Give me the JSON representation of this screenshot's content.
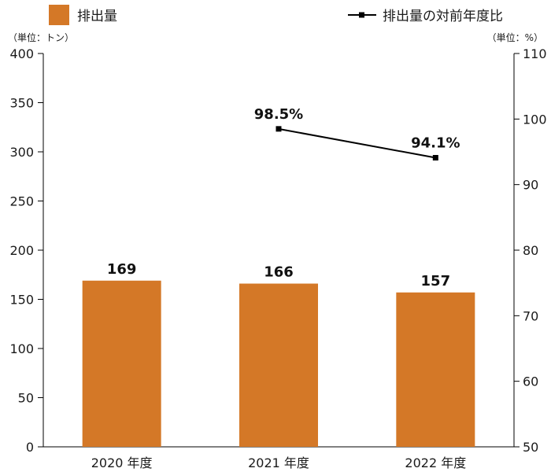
{
  "chart_data": {
    "type": "bar",
    "categories": [
      "2020 年度",
      "2021 年度",
      "2022 年度"
    ],
    "series": [
      {
        "name": "排出量",
        "kind": "bar",
        "axis": "left",
        "values": [
          169,
          166,
          157
        ],
        "labels": [
          "169",
          "166",
          "157"
        ],
        "color": "#D47827"
      },
      {
        "name": "排出量の対前年度比",
        "kind": "line",
        "axis": "right",
        "values": [
          null,
          98.5,
          94.1
        ],
        "labels": [
          "",
          "98.5%",
          "94.1%"
        ],
        "color": "#000000"
      }
    ],
    "left_axis": {
      "unit": "（単位：トン）",
      "min": 0,
      "max": 400,
      "ticks": [
        "0",
        "50",
        "100",
        "150",
        "200",
        "250",
        "300",
        "350",
        "400"
      ]
    },
    "right_axis": {
      "unit": "（単位：%）",
      "min": 50,
      "max": 110,
      "ticks": [
        "50",
        "60",
        "70",
        "80",
        "90",
        "100",
        "110"
      ]
    },
    "grid": false,
    "legend": "top"
  }
}
